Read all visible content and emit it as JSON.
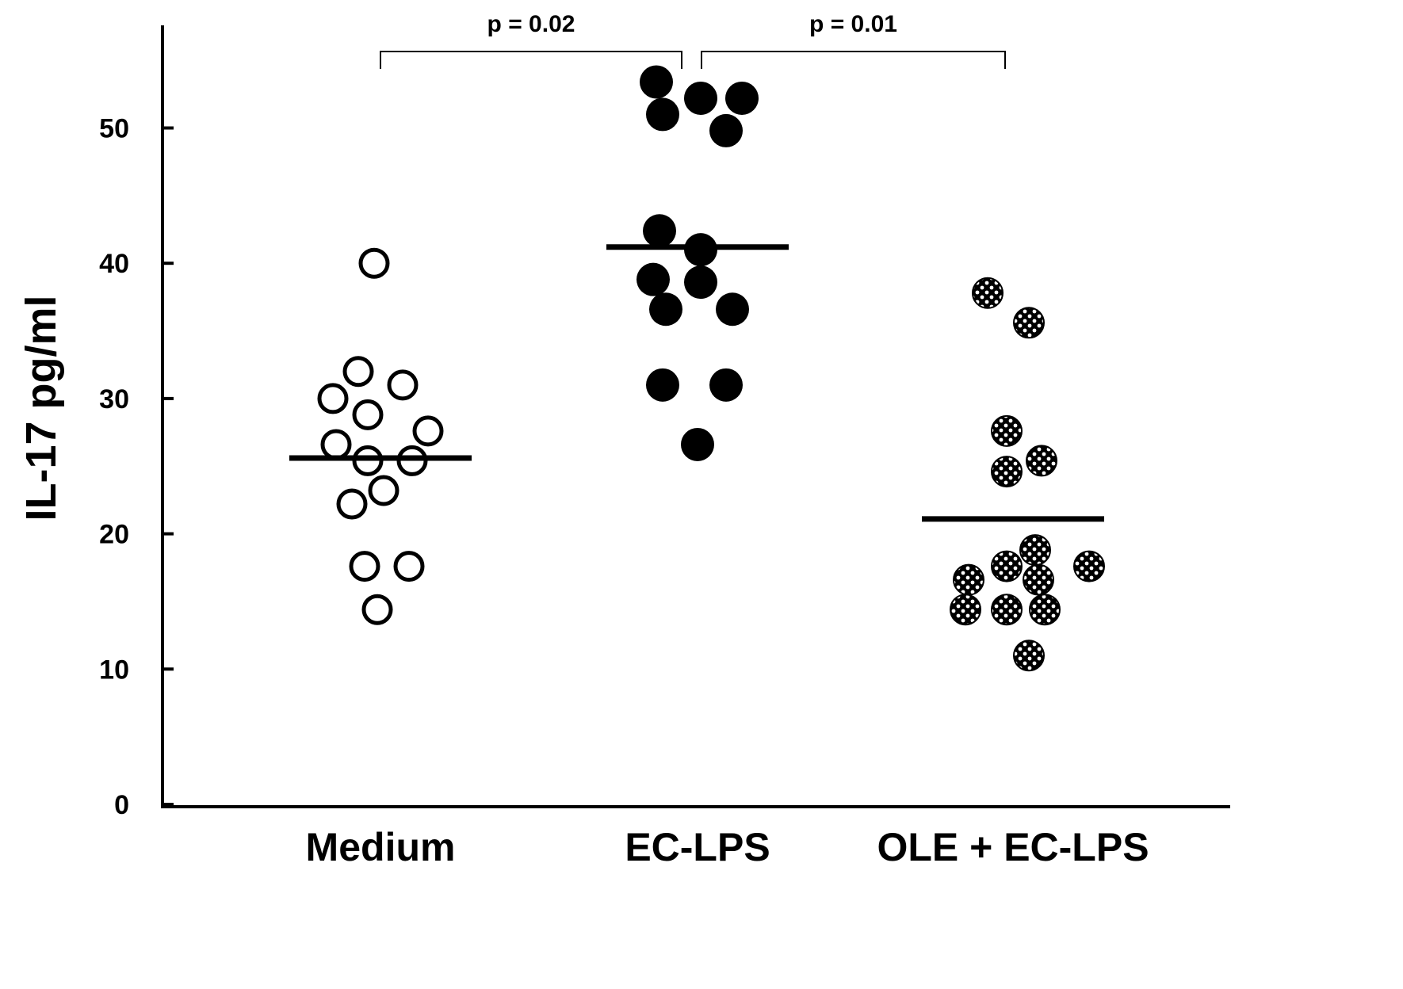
{
  "chart_data": {
    "type": "scatter",
    "ylabel": "IL-17 pg/ml",
    "xlabel": "",
    "ylim": [
      0,
      56
    ],
    "yticks": [
      "0",
      "10",
      "20",
      "30",
      "40",
      "50"
    ],
    "categories": [
      "Medium",
      "EC-LPS",
      "OLE + EC-LPS"
    ],
    "series": [
      {
        "style": "open",
        "points": [
          {
            "x": -0.02,
            "y": 40
          },
          {
            "x": -0.07,
            "y": 32
          },
          {
            "x": 0.07,
            "y": 31
          },
          {
            "x": -0.15,
            "y": 30
          },
          {
            "x": -0.04,
            "y": 28.8
          },
          {
            "x": 0.15,
            "y": 27.6
          },
          {
            "x": -0.14,
            "y": 26.6
          },
          {
            "x": -0.04,
            "y": 25.4
          },
          {
            "x": 0.1,
            "y": 25.4
          },
          {
            "x": 0.01,
            "y": 23.2
          },
          {
            "x": -0.09,
            "y": 22.2
          },
          {
            "x": -0.05,
            "y": 17.6
          },
          {
            "x": 0.09,
            "y": 17.6
          },
          {
            "x": -0.01,
            "y": 14.4
          }
        ],
        "mean": 25.6
      },
      {
        "style": "filled",
        "points": [
          {
            "x": -0.13,
            "y": 53.4
          },
          {
            "x": 0.01,
            "y": 52.2
          },
          {
            "x": 0.14,
            "y": 52.2
          },
          {
            "x": -0.11,
            "y": 51
          },
          {
            "x": 0.09,
            "y": 49.8
          },
          {
            "x": -0.12,
            "y": 42.4
          },
          {
            "x": 0.01,
            "y": 41
          },
          {
            "x": -0.14,
            "y": 38.8
          },
          {
            "x": 0.01,
            "y": 38.6
          },
          {
            "x": -0.1,
            "y": 36.6
          },
          {
            "x": 0.11,
            "y": 36.6
          },
          {
            "x": -0.11,
            "y": 31
          },
          {
            "x": 0.09,
            "y": 31
          },
          {
            "x": 0.0,
            "y": 26.6
          }
        ],
        "mean": 41.2
      },
      {
        "style": "patterned",
        "points": [
          {
            "x": -0.08,
            "y": 37.8
          },
          {
            "x": 0.05,
            "y": 35.6
          },
          {
            "x": -0.02,
            "y": 27.6
          },
          {
            "x": 0.09,
            "y": 25.4
          },
          {
            "x": -0.02,
            "y": 24.6
          },
          {
            "x": 0.07,
            "y": 18.8
          },
          {
            "x": -0.02,
            "y": 17.6
          },
          {
            "x": 0.24,
            "y": 17.6
          },
          {
            "x": -0.14,
            "y": 16.6
          },
          {
            "x": 0.08,
            "y": 16.6
          },
          {
            "x": -0.15,
            "y": 14.4
          },
          {
            "x": -0.02,
            "y": 14.4
          },
          {
            "x": 0.1,
            "y": 14.4
          },
          {
            "x": 0.05,
            "y": 11
          }
        ],
        "mean": 21.1
      }
    ],
    "comparisons": [
      {
        "from": 0,
        "to": 1,
        "label": "p = 0.02"
      },
      {
        "from": 1,
        "to": 2,
        "label": "p = 0.01"
      }
    ],
    "grid": false,
    "legend": "none"
  }
}
